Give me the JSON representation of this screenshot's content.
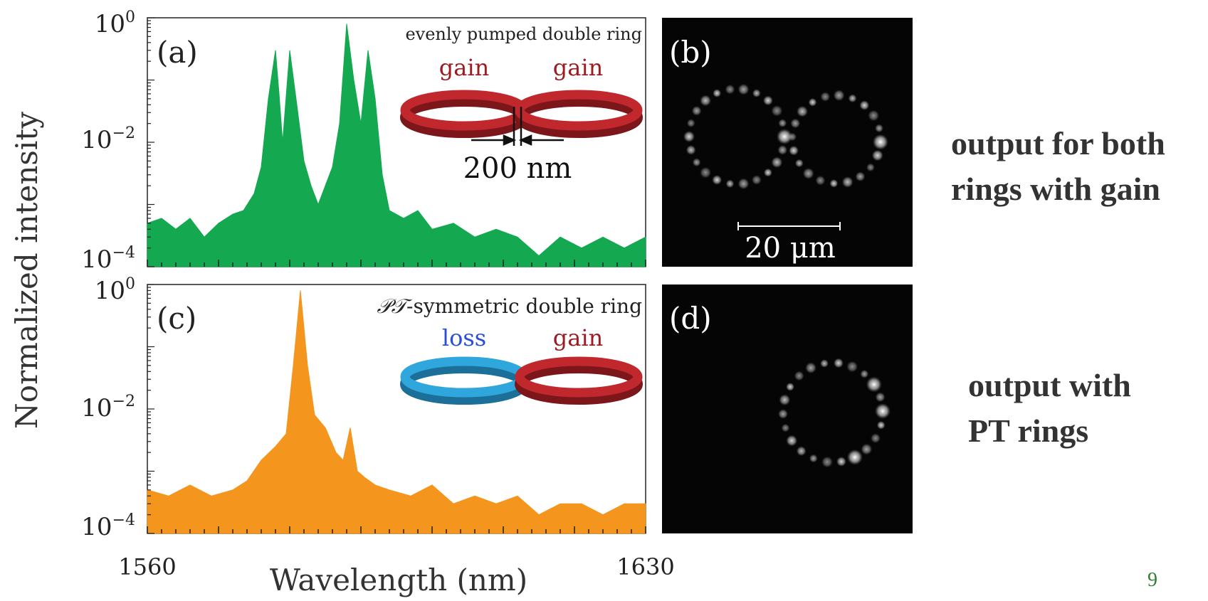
{
  "figure": {
    "y_axis_label": "Normalized intensity",
    "x_axis_label": "Wavelength (nm)",
    "x_tick_labels": [
      "1560",
      "1630"
    ],
    "y_tick_labels": [
      "10^0",
      "10^-2",
      "10^-4"
    ]
  },
  "panels": {
    "a": {
      "letter": "(a)",
      "title": "evenly pumped double ring",
      "ring_left_label": "gain",
      "ring_right_label": "gain",
      "gap_label": "200 nm",
      "fill_color": "#14a850",
      "ring_left_color": "#c0282d",
      "ring_right_color": "#c0282d"
    },
    "b": {
      "letter": "(b)",
      "scale_bar_label": "20 μm"
    },
    "c": {
      "letter": "(c)",
      "title_symbol": "𝒫𝒯",
      "title_rest": "-symmetric double ring",
      "ring_left_label": "loss",
      "ring_right_label": "gain",
      "fill_color": "#f4961e",
      "ring_left_color": "#2fa6dc",
      "ring_right_color": "#c0282d"
    },
    "d": {
      "letter": "(d)"
    }
  },
  "side_labels": {
    "top": [
      "output for both",
      "rings with gain"
    ],
    "bottom": [
      "output with",
      "PT rings"
    ]
  },
  "page_number": "9",
  "chart_data": [
    {
      "type": "area",
      "panel": "a",
      "title": "evenly pumped double ring",
      "xlabel": "Wavelength (nm)",
      "ylabel": "Normalized intensity",
      "yscale": "log",
      "xlim": [
        1560,
        1630
      ],
      "ylim": [
        0.0001,
        1
      ],
      "series": [
        {
          "x": [
            1560,
            1562,
            1564,
            1566,
            1568,
            1570,
            1572,
            1573.5,
            1575,
            1576,
            1577,
            1578,
            1578.5,
            1579,
            1580,
            1581,
            1582,
            1583,
            1584,
            1585,
            1586,
            1587,
            1588,
            1589,
            1590,
            1591,
            1592,
            1593,
            1594,
            1596,
            1598,
            1600,
            1603,
            1606,
            1609,
            1612,
            1615,
            1618,
            1621,
            1624,
            1627,
            1630
          ],
          "y": [
            0.0005,
            0.0006,
            0.0004,
            0.0006,
            0.0003,
            0.0005,
            0.0007,
            0.0008,
            0.0015,
            0.004,
            0.05,
            0.3,
            0.06,
            0.01,
            0.3,
            0.04,
            0.005,
            0.002,
            0.001,
            0.002,
            0.004,
            0.02,
            0.8,
            0.1,
            0.02,
            0.3,
            0.05,
            0.003,
            0.0008,
            0.0006,
            0.0008,
            0.0004,
            0.0005,
            0.0003,
            0.0004,
            0.0003,
            0.00015,
            0.0003,
            0.0002,
            0.0003,
            0.0002,
            0.0003
          ]
        }
      ]
    },
    {
      "type": "area",
      "panel": "c",
      "title": "PT-symmetric double ring",
      "xlabel": "Wavelength (nm)",
      "ylabel": "Normalized intensity",
      "yscale": "log",
      "xlim": [
        1560,
        1630
      ],
      "ylim": [
        0.0001,
        1
      ],
      "series": [
        {
          "x": [
            1560,
            1563,
            1566,
            1569,
            1572,
            1574,
            1576,
            1578,
            1579.5,
            1580.5,
            1581.5,
            1582.5,
            1583.5,
            1585,
            1586.5,
            1587.5,
            1588.5,
            1589.5,
            1590.5,
            1592,
            1594,
            1597,
            1600,
            1603,
            1606,
            1609,
            1612,
            1615,
            1618,
            1621,
            1624,
            1627,
            1630
          ],
          "y": [
            0.0005,
            0.0004,
            0.0006,
            0.0004,
            0.0005,
            0.0007,
            0.0015,
            0.0025,
            0.004,
            0.05,
            0.8,
            0.05,
            0.008,
            0.005,
            0.002,
            0.0015,
            0.005,
            0.001,
            0.0008,
            0.0006,
            0.0005,
            0.0004,
            0.0006,
            0.0003,
            0.0004,
            0.0003,
            0.0004,
            0.0002,
            0.0003,
            0.0003,
            0.0002,
            0.0003,
            0.0003
          ]
        }
      ]
    }
  ]
}
